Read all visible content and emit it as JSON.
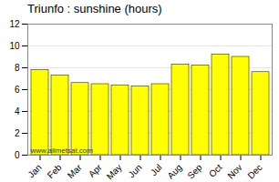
{
  "chart_data": {
    "type": "bar",
    "title": "Triunfo : sunshine (hours)",
    "categories": [
      "Jan",
      "Feb",
      "Mar",
      "Apr",
      "May",
      "Jun",
      "Jul",
      "Aug",
      "Sep",
      "Oct",
      "Nov",
      "Dec"
    ],
    "values": [
      7.8,
      7.3,
      6.6,
      6.5,
      6.4,
      6.3,
      6.5,
      8.3,
      8.2,
      9.2,
      9.0,
      7.6
    ],
    "color": "#ffff00",
    "ylim": [
      0,
      12
    ],
    "yticks": [
      0,
      2,
      4,
      6,
      8,
      10,
      12
    ],
    "grid": true,
    "annotations": [
      "www.allmetsat.com"
    ]
  }
}
